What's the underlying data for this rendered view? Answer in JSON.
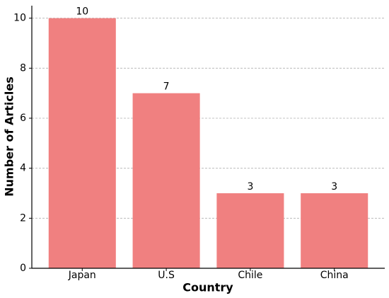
{
  "chart_data": {
    "type": "bar",
    "categories": [
      "Japan",
      "U.S",
      "Chile",
      "China"
    ],
    "values": [
      10,
      7,
      3,
      3
    ],
    "color": "#f08080",
    "xlabel": "Country",
    "ylabel": "Number of Articles",
    "ylim": [
      0,
      10.5
    ],
    "yticks": [
      0,
      2,
      4,
      6,
      8,
      10
    ],
    "grid": true
  }
}
